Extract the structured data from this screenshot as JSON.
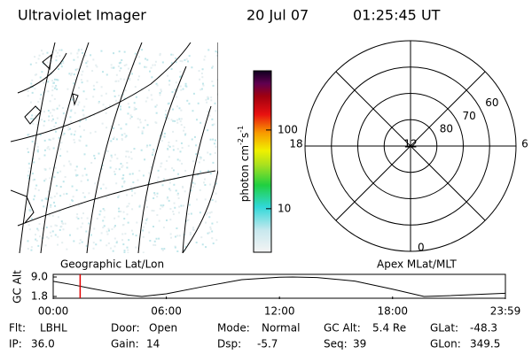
{
  "header": {
    "title": "Ultraviolet Imager",
    "date": "20 Jul 07",
    "time": "01:25:45 UT"
  },
  "colorbar": {
    "label": [
      "photon cm",
      "-2",
      "s",
      "-1"
    ],
    "scale": "log",
    "range": [
      2.8,
      565
    ],
    "ticks": [
      10,
      100
    ]
  },
  "polar": {
    "lat_range": [
      50,
      90
    ],
    "lat_rings": [
      80,
      70,
      60
    ],
    "mlt_labels": [
      12,
      18,
      6,
      0
    ]
  },
  "timeline": {
    "ylabel": "GC Alt",
    "left_label": "Geographic Lat/Lon",
    "right_label": "Apex MLat/MLT",
    "xlim": [
      0,
      1439
    ],
    "xticks": [
      {
        "value": 0,
        "label": "00:00"
      },
      {
        "value": 360,
        "label": "06:00"
      },
      {
        "value": 720,
        "label": "12:00"
      },
      {
        "value": 1080,
        "label": "18:00"
      },
      {
        "value": 1439,
        "label": "23:59"
      }
    ],
    "ylim": [
      1.8,
      9.0
    ],
    "yticks": [
      {
        "value": 9.0,
        "label": "9.0"
      },
      1.8
    ],
    "x": [
      0,
      60,
      120,
      180,
      240,
      282,
      360,
      480,
      600,
      720,
      762,
      840,
      960,
      1080,
      1180,
      1260,
      1380,
      1439
    ],
    "values": [
      7.4,
      6.2,
      4.8,
      3.5,
      2.3,
      1.8,
      2.8,
      5.5,
      8.0,
      8.9,
      9.0,
      8.8,
      7.5,
      4.5,
      1.8,
      2.1,
      2.7,
      3.0
    ],
    "marker": 85.75,
    "marker_color": "#e00000"
  },
  "footer": {
    "rows": [
      [
        [
          "Flt:",
          "LBHL"
        ],
        [
          "Door:",
          "Open"
        ],
        [
          "Mode:",
          "Normal"
        ],
        [
          "GC Alt:",
          "5.4 Re"
        ],
        [
          "GLat:",
          "-48.3"
        ]
      ],
      [
        [
          "IP:",
          "36.0"
        ],
        [
          "Gain:",
          "14"
        ],
        [
          "Dsp:",
          "-5.7"
        ],
        [
          "Seq:",
          "39"
        ],
        [
          "GLon:",
          "349.5"
        ]
      ]
    ]
  }
}
